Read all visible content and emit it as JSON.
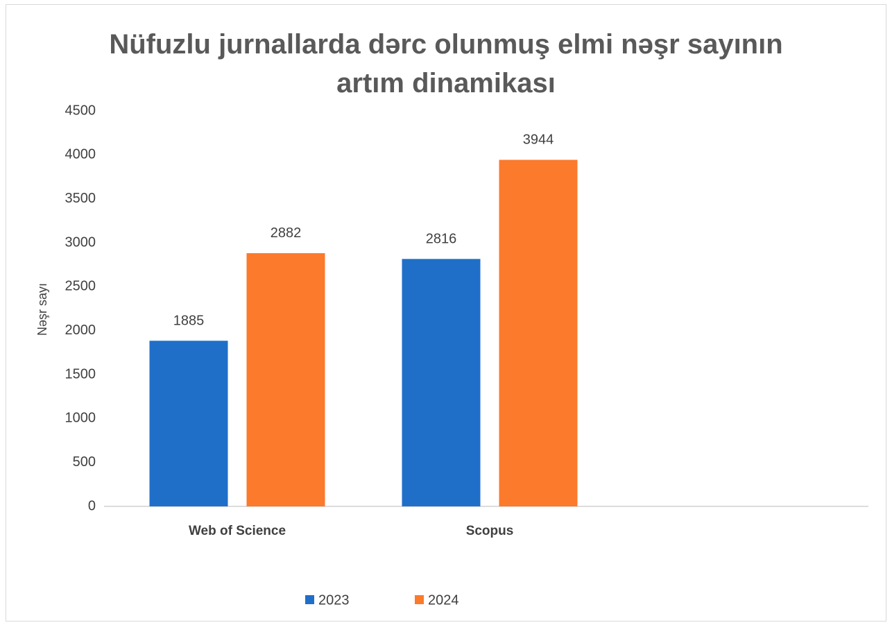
{
  "chart_data": {
    "type": "bar",
    "title": "Nüfuzlu jurnallarda dərc olunmuş elmi nəşr sayının artım dinamikası",
    "y_label": "Nəşr sayı",
    "categories": [
      "Web of Science",
      "Scopus",
      null
    ],
    "series": [
      {
        "name": "2023",
        "color": "#1f6fc9",
        "values": [
          1885,
          2816,
          null
        ]
      },
      {
        "name": "2024",
        "color": "#fb7a2c",
        "values": [
          2882,
          3944,
          null
        ]
      }
    ],
    "ylim": [
      0,
      4500
    ],
    "yticks": [
      0,
      500,
      1000,
      1500,
      2000,
      2500,
      3000,
      3500,
      4000,
      4500
    ],
    "grid": false,
    "legend": "bottom"
  }
}
